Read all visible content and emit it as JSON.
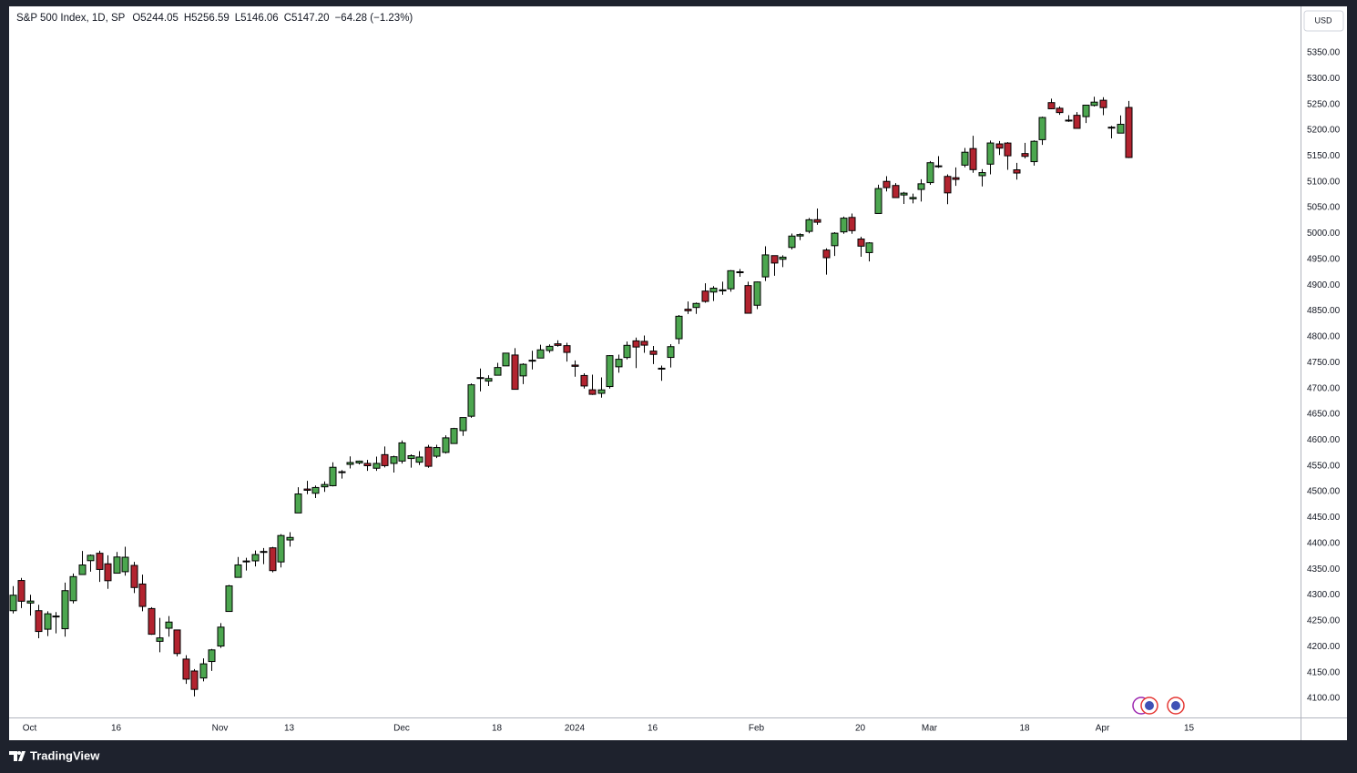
{
  "chart_data": {
    "type": "candlestick",
    "title": "S&P 500 Index, 1D, SP",
    "header_values": [
      "O5244.05",
      "H5256.59",
      "L5146.06",
      "C5147.20",
      "−64.28 (−1.23%)"
    ],
    "currency": "USD",
    "up_color": "#4ca64f",
    "down_color": "#b2232f",
    "x": [
      "2023-09-28",
      "2023-09-29",
      "2023-10-02",
      "2023-10-03",
      "2023-10-04",
      "2023-10-05",
      "2023-10-06",
      "2023-10-09",
      "2023-10-10",
      "2023-10-11",
      "2023-10-12",
      "2023-10-13",
      "2023-10-16",
      "2023-10-17",
      "2023-10-18",
      "2023-10-19",
      "2023-10-20",
      "2023-10-23",
      "2023-10-24",
      "2023-10-25",
      "2023-10-26",
      "2023-10-27",
      "2023-10-30",
      "2023-10-31",
      "2023-11-01",
      "2023-11-02",
      "2023-11-03",
      "2023-11-06",
      "2023-11-07",
      "2023-11-08",
      "2023-11-09",
      "2023-11-10",
      "2023-11-13",
      "2023-11-14",
      "2023-11-15",
      "2023-11-16",
      "2023-11-17",
      "2023-11-20",
      "2023-11-21",
      "2023-11-22",
      "2023-11-24",
      "2023-11-27",
      "2023-11-28",
      "2023-11-29",
      "2023-11-30",
      "2023-12-01",
      "2023-12-04",
      "2023-12-05",
      "2023-12-06",
      "2023-12-07",
      "2023-12-08",
      "2023-12-11",
      "2023-12-12",
      "2023-12-13",
      "2023-12-14",
      "2023-12-15",
      "2023-12-18",
      "2023-12-19",
      "2023-12-20",
      "2023-12-21",
      "2023-12-22",
      "2023-12-26",
      "2023-12-27",
      "2023-12-28",
      "2023-12-29",
      "2024-01-02",
      "2024-01-03",
      "2024-01-04",
      "2024-01-05",
      "2024-01-08",
      "2024-01-09",
      "2024-01-10",
      "2024-01-11",
      "2024-01-12",
      "2024-01-16",
      "2024-01-17",
      "2024-01-18",
      "2024-01-19",
      "2024-01-22",
      "2024-01-23",
      "2024-01-24",
      "2024-01-25",
      "2024-01-26",
      "2024-01-29",
      "2024-01-30",
      "2024-01-31",
      "2024-02-01",
      "2024-02-02",
      "2024-02-05",
      "2024-02-06",
      "2024-02-07",
      "2024-02-08",
      "2024-02-09",
      "2024-02-12",
      "2024-02-13",
      "2024-02-14",
      "2024-02-15",
      "2024-02-16",
      "2024-02-20",
      "2024-02-21",
      "2024-02-22",
      "2024-02-23",
      "2024-02-26",
      "2024-02-27",
      "2024-02-28",
      "2024-02-29",
      "2024-03-01",
      "2024-03-04",
      "2024-03-05",
      "2024-03-06",
      "2024-03-07",
      "2024-03-08",
      "2024-03-11",
      "2024-03-12",
      "2024-03-13",
      "2024-03-14",
      "2024-03-15",
      "2024-03-18",
      "2024-03-19",
      "2024-03-20",
      "2024-03-21",
      "2024-03-22",
      "2024-03-25",
      "2024-03-26",
      "2024-03-27",
      "2024-03-28",
      "2024-04-01",
      "2024-04-02",
      "2024-04-03",
      "2024-04-04"
    ],
    "open": [
      4269.65,
      4328.18,
      4284.52,
      4269.75,
      4233.83,
      4259.31,
      4234.79,
      4289.02,
      4339.75,
      4366.59,
      4380.94,
      4360.49,
      4342.37,
      4345.23,
      4357.35,
      4321.36,
      4273.85,
      4210.4,
      4235.79,
      4232.42,
      4175.99,
      4152.93,
      4139.39,
      4171.33,
      4201.27,
      4268.26,
      4334.23,
      4364.27,
      4366.21,
      4384.37,
      4391.41,
      4364.15,
      4406.66,
      4458.97,
      4505.3,
      4497.08,
      4509.55,
      4511.7,
      4538.77,
      4553.04,
      4555.84,
      4554.86,
      4545.55,
      4571.84,
      4554.87,
      4559.43,
      4564.37,
      4557.25,
      4586.23,
      4568.84,
      4576.2,
      4593.39,
      4618.3,
      4646.2,
      4721.04,
      4714.23,
      4725.58,
      4743.72,
      4764.73,
      4724.29,
      4753.92,
      4758.86,
      4773.45,
      4786.44,
      4782.88,
      4745.2,
      4725.07,
      4697.42,
      4690.57,
      4703.7,
      4741.93,
      4759.94,
      4792.13,
      4791.18,
      4772.35,
      4739.13,
      4760.1,
      4796.28,
      4853.42,
      4856.8,
      4888.56,
      4886.66,
      4888.91,
      4892.95,
      4925.89,
      4899.19,
      4861.11,
      4916.06,
      4957.19,
      4950.16,
      4973.05,
      4995.16,
      5004.17,
      5026.83,
      4967.94,
      4976.44,
      5003.14,
      5031.13,
      4989.32,
      4963.03,
      5038.83,
      5100.92,
      5093.0,
      5074.6,
      5067.2,
      5085.36,
      5098.51,
      5130.99,
      5110.52,
      5108.03,
      5132.38,
      5164.46,
      5111.96,
      5134.3,
      5173.49,
      5175.14,
      5123.31,
      5154.77,
      5139.09,
      5181.69,
      5253.43,
      5242.48,
      5219.52,
      5228.85,
      5226.31,
      5248.03,
      5257.97,
      5204.29,
      5194.37,
      5244.05
    ],
    "high": [
      4317.27,
      4333.15,
      4300.58,
      4281.15,
      4268.5,
      4267.13,
      4324.1,
      4341.73,
      4385.46,
      4378.64,
      4385.85,
      4377.1,
      4383.33,
      4393.57,
      4364.2,
      4339.54,
      4276.56,
      4255.84,
      4259.38,
      4232.42,
      4183.6,
      4156.7,
      4177.47,
      4195.55,
      4245.64,
      4319.72,
      4373.62,
      4372.21,
      4386.26,
      4391.2,
      4393.4,
      4418.03,
      4421.76,
      4508.67,
      4521.17,
      4511.99,
      4520.12,
      4557.11,
      4542.14,
      4568.43,
      4560.31,
      4561.65,
      4568.14,
      4587.64,
      4569.89,
      4599.39,
      4572.37,
      4578.56,
      4590.74,
      4590.92,
      4609.23,
      4623.71,
      4643.93,
      4709.69,
      4738.57,
      4725.53,
      4749.52,
      4768.69,
      4778.01,
      4748.71,
      4772.94,
      4784.72,
      4785.39,
      4793.3,
      4788.43,
      4754.33,
      4729.29,
      4726.78,
      4721.49,
      4764.54,
      4765.47,
      4790.8,
      4798.5,
      4802.4,
      4782.34,
      4744.23,
      4785.79,
      4842.07,
      4868.41,
      4866.48,
      4903.68,
      4898.15,
      4906.69,
      4929.31,
      4931.09,
      4906.75,
      4906.97,
      4975.29,
      4957.19,
      4957.77,
      4999.89,
      5000.4,
      5030.06,
      5048.39,
      4971.3,
      5002.52,
      5032.72,
      5038.7,
      4993.71,
      4983.21,
      5094.39,
      5111.06,
      5097.66,
      5080.69,
      5077.37,
      5104.99,
      5140.33,
      5149.67,
      5114.54,
      5127.97,
      5165.62,
      5189.26,
      5124.66,
      5179.87,
      5179.14,
      5176.85,
      5136.86,
      5175.6,
      5180.31,
      5226.19,
      5261.1,
      5246.09,
      5229.09,
      5235.16,
      5249.26,
      5264.85,
      5263.95,
      5208.34,
      5228.75,
      5256.59
    ],
    "low": [
      4264.38,
      4274.86,
      4260.21,
      4216.45,
      4220.48,
      4225.91,
      4219.55,
      4283.79,
      4339.64,
      4345.34,
      4325.43,
      4311.97,
      4342.37,
      4337.54,
      4303.84,
      4268.64,
      4223.03,
      4189.22,
      4219.43,
      4181.42,
      4127.9,
      4103.78,
      4132.94,
      4153.12,
      4197.74,
      4268.26,
      4334.23,
      4347.53,
      4355.41,
      4359.76,
      4343.94,
      4353.34,
      4393.82,
      4458.97,
      4495.31,
      4487.83,
      4499.66,
      4510.36,
      4525.51,
      4545.05,
      4552.8,
      4540.51,
      4540.51,
      4547.15,
      4537.24,
      4554.71,
      4546.72,
      4551.68,
      4546.5,
      4565.22,
      4574.06,
      4593.39,
      4608.09,
      4643.23,
      4694.34,
      4704.69,
      4725.58,
      4743.72,
      4697.82,
      4708.35,
      4736.77,
      4758.45,
      4768.9,
      4780.98,
      4751.99,
      4722.67,
      4699.71,
      4687.53,
      4682.11,
      4699.82,
      4730.35,
      4756.2,
      4739.58,
      4768.98,
      4747.12,
      4714.82,
      4740.57,
      4785.87,
      4844.05,
      4844.37,
      4865.94,
      4869.34,
      4881.47,
      4887.4,
      4916.27,
      4845.15,
      4853.52,
      4907.99,
      4918.09,
      4934.88,
      4969.05,
      4987.09,
      5000.34,
      5016.83,
      4920.31,
      4956.45,
      4999.44,
      4999.52,
      4955.02,
      4946.0,
      5038.83,
      5081.46,
      5068.91,
      5057.29,
      5058.35,
      5061.89,
      5094.16,
      5127.18,
      5056.82,
      5092.22,
      5128.21,
      5117.5,
      5091.14,
      5114.48,
      5151.88,
      5123.3,
      5104.35,
      5145.47,
      5131.59,
      5171.55,
      5240.66,
      5229.87,
      5216.09,
      5203.42,
      5213.92,
      5245.82,
      5229.2,
      5184.05,
      5194.37,
      5146.06
    ],
    "close": [
      4299.7,
      4288.05,
      4288.39,
      4229.45,
      4263.75,
      4258.19,
      4308.5,
      4335.66,
      4358.24,
      4376.95,
      4349.61,
      4327.78,
      4373.63,
      4373.2,
      4314.6,
      4278.0,
      4224.16,
      4217.04,
      4247.68,
      4186.77,
      4137.23,
      4117.37,
      4166.82,
      4193.8,
      4237.86,
      4317.78,
      4358.34,
      4365.98,
      4378.38,
      4382.78,
      4347.35,
      4415.24,
      4411.55,
      4495.7,
      4502.88,
      4508.24,
      4514.02,
      4547.38,
      4538.19,
      4556.62,
      4559.34,
      4550.43,
      4554.89,
      4550.58,
      4567.8,
      4594.63,
      4569.78,
      4567.18,
      4549.34,
      4585.59,
      4604.37,
      4622.44,
      4643.7,
      4707.09,
      4719.55,
      4719.19,
      4740.56,
      4768.37,
      4698.35,
      4746.75,
      4754.63,
      4774.75,
      4781.58,
      4783.35,
      4769.83,
      4742.83,
      4704.81,
      4688.68,
      4697.24,
      4763.54,
      4756.5,
      4783.45,
      4780.24,
      4783.83,
      4765.98,
      4739.21,
      4780.94,
      4839.81,
      4850.43,
      4864.6,
      4868.55,
      4894.16,
      4890.97,
      4927.93,
      4924.97,
      4845.65,
      4906.19,
      4958.61,
      4942.81,
      4954.23,
      4995.06,
      4997.91,
      5026.61,
      5021.84,
      4953.17,
      5000.62,
      5029.73,
      5005.57,
      4975.51,
      4981.8,
      5087.03,
      5088.8,
      5069.53,
      5078.18,
      5069.76,
      5096.27,
      5137.08,
      5130.95,
      5078.65,
      5104.76,
      5157.36,
      5123.69,
      5117.94,
      5175.27,
      5165.31,
      5150.48,
      5117.09,
      5149.42,
      5178.51,
      5224.62,
      5241.53,
      5234.18,
      5218.19,
      5203.58,
      5248.49,
      5254.35,
      5243.77,
      5205.81,
      5211.49,
      5147.2
    ],
    "ylim": [
      4063,
      5438
    ],
    "yticks": [
      {
        "value": 4100,
        "label": "4100.00"
      },
      {
        "value": 4150,
        "label": "4150.00"
      },
      {
        "value": 4200,
        "label": "4200.00"
      },
      {
        "value": 4250,
        "label": "4250.00"
      },
      {
        "value": 4300,
        "label": "4300.00"
      },
      {
        "value": 4350,
        "label": "4350.00"
      },
      {
        "value": 4400,
        "label": "4400.00"
      },
      {
        "value": 4450,
        "label": "4450.00"
      },
      {
        "value": 4500,
        "label": "4500.00"
      },
      {
        "value": 4550,
        "label": "4550.00"
      },
      {
        "value": 4600,
        "label": "4600.00"
      },
      {
        "value": 4650,
        "label": "4650.00"
      },
      {
        "value": 4700,
        "label": "4700.00"
      },
      {
        "value": 4750,
        "label": "4750.00"
      },
      {
        "value": 4800,
        "label": "4800.00"
      },
      {
        "value": 4850,
        "label": "4850.00"
      },
      {
        "value": 4900,
        "label": "4900.00"
      },
      {
        "value": 4950,
        "label": "4950.00"
      },
      {
        "value": 5000,
        "label": "5000.00"
      },
      {
        "value": 5050,
        "label": "5050.00"
      },
      {
        "value": 5100,
        "label": "5100.00"
      },
      {
        "value": 5150,
        "label": "5150.00"
      },
      {
        "value": 5200,
        "label": "5200.00"
      },
      {
        "value": 5250,
        "label": "5250.00"
      },
      {
        "value": 5300,
        "label": "5300.00"
      },
      {
        "value": 5350,
        "label": "5350.00"
      }
    ],
    "xticks": [
      {
        "value": "2023-10-02",
        "label": "Oct"
      },
      {
        "value": "2023-10-16",
        "label": "16"
      },
      {
        "value": "2023-11-01",
        "label": "Nov"
      },
      {
        "value": "2023-11-13",
        "label": "13"
      },
      {
        "value": "2023-12-01",
        "label": "Dec"
      },
      {
        "value": "2023-12-18",
        "label": "18"
      },
      {
        "value": "2024-01-02",
        "label": "2024"
      },
      {
        "value": "2024-01-16",
        "label": "16"
      },
      {
        "value": "2024-02-01",
        "label": "Feb"
      },
      {
        "value": "2024-02-20",
        "label": "20"
      },
      {
        "value": "2024-03-01",
        "label": "Mar"
      },
      {
        "value": "2024-03-18",
        "label": "18"
      },
      {
        "value": "2024-04-01",
        "label": "Apr"
      },
      {
        "value": "2024-04-15",
        "label": "15"
      }
    ],
    "grid": false
  },
  "footer": {
    "brand": "TradingView"
  }
}
